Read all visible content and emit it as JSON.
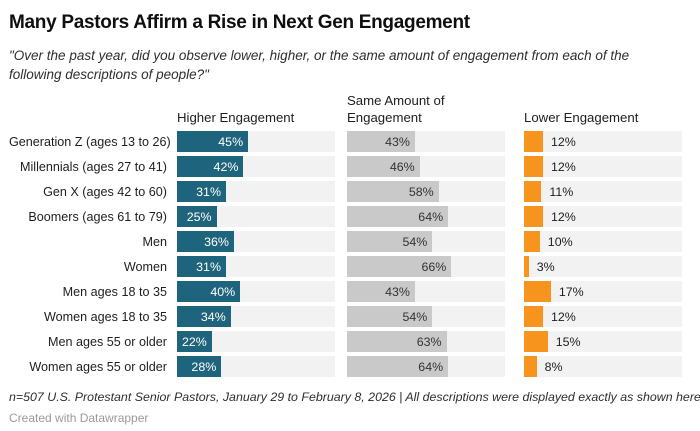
{
  "header": {
    "title": "Many Pastors Affirm a Rise in Next Gen Engagement",
    "subtitle": "\"Over the past year, did you observe lower, higher, or the same amount of engagement from each of the following descriptions of people?\""
  },
  "columns": [
    {
      "label": "Higher Engagement"
    },
    {
      "label": "Same Amount of Engagement"
    },
    {
      "label": "Lower Engagement"
    }
  ],
  "chart_data": {
    "type": "bar",
    "orientation": "horizontal",
    "title": "Many Pastors Affirm a Rise in Next Gen Engagement",
    "subtitle": "\"Over the past year, did you observe lower, higher, or the same amount of engagement from each of the following descriptions of people?\"",
    "categories": [
      "Generation Z (ages 13 to 26)",
      "Millennials (ages 27 to 41)",
      "Gen X (ages 42 to 60)",
      "Boomers (ages 61 to 79)",
      "Men",
      "Women",
      "Men ages 18 to 35",
      "Women ages 18 to 35",
      "Men ages 55 or older",
      "Women ages 55 or older"
    ],
    "series": [
      {
        "name": "Higher Engagement",
        "color": "#1E647C",
        "label_style": "inside-white",
        "values": [
          45,
          42,
          31,
          25,
          36,
          31,
          40,
          34,
          22,
          28
        ]
      },
      {
        "name": "Same Amount of Engagement",
        "color": "#C9C9C9",
        "label_style": "inside-dark",
        "values": [
          43,
          46,
          58,
          64,
          54,
          66,
          43,
          54,
          63,
          64
        ]
      },
      {
        "name": "Lower Engagement",
        "color": "#F7941E",
        "label_style": "outside-dark",
        "values": [
          12,
          12,
          11,
          12,
          10,
          3,
          17,
          12,
          15,
          8
        ]
      }
    ],
    "value_suffix": "%",
    "xlim": [
      0,
      100
    ],
    "grid": false,
    "legend_position": "column-headers"
  },
  "colors": {
    "higher_bar": "#1E647C",
    "same_bar": "#C9C9C9",
    "lower_bar": "#F7941E",
    "bar_track": "#F2F2F2",
    "inside_white_label": "#FFFFFF",
    "inside_dark_label": "#333333"
  },
  "footer": {
    "note": "n=507 U.S. Protestant Senior Pastors, January 29 to February 8, 2026 | All descriptions were displayed exactly as shown here.",
    "attribution": "Created with Datawrapper"
  }
}
